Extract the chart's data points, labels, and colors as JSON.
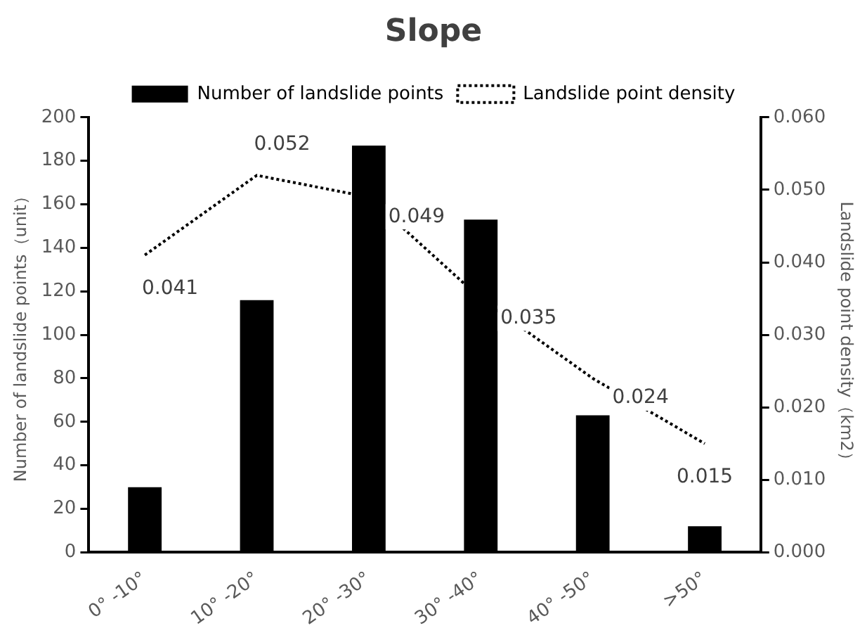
{
  "chart_data": {
    "type": "bar",
    "title": "Slope",
    "ylabel": "Number of landslide points（unit）",
    "y2label": "Landslide point density（km2）",
    "categories": [
      "0° -10°",
      "10° -20°",
      "20° -30°",
      "30° -40°",
      "40° -50°",
      ">50°"
    ],
    "series": [
      {
        "name": "Number of landslide points",
        "color": "#000000",
        "values": [
          30,
          116,
          187,
          153,
          63,
          12
        ]
      },
      {
        "name": "Landslide point density",
        "type": "line",
        "axis": "y2",
        "color": "#000000",
        "line_style": "dotted",
        "marker": "none",
        "values": [
          0.041,
          0.052,
          0.049,
          0.035,
          0.024,
          0.015
        ],
        "value_labels": [
          "0.041",
          "0.052",
          "0.049",
          "0.035",
          "0.024",
          "0.015"
        ]
      }
    ],
    "ylim": [
      0,
      200
    ],
    "yticks": [
      0,
      20,
      40,
      60,
      80,
      100,
      120,
      140,
      160,
      180,
      200
    ],
    "y2lim": [
      0,
      0.06
    ],
    "y2ticks": [
      {
        "value": 0,
        "label": "0.000"
      },
      {
        "value": 0.01,
        "label": "0.010"
      },
      {
        "value": 0.02,
        "label": "0.020"
      },
      {
        "value": 0.03,
        "label": "0.030"
      },
      {
        "value": 0.04,
        "label": "0.040"
      },
      {
        "value": 0.05,
        "label": "0.050"
      },
      {
        "value": 0.06,
        "label": "0.060"
      }
    ],
    "grid": false,
    "legend": "top"
  }
}
